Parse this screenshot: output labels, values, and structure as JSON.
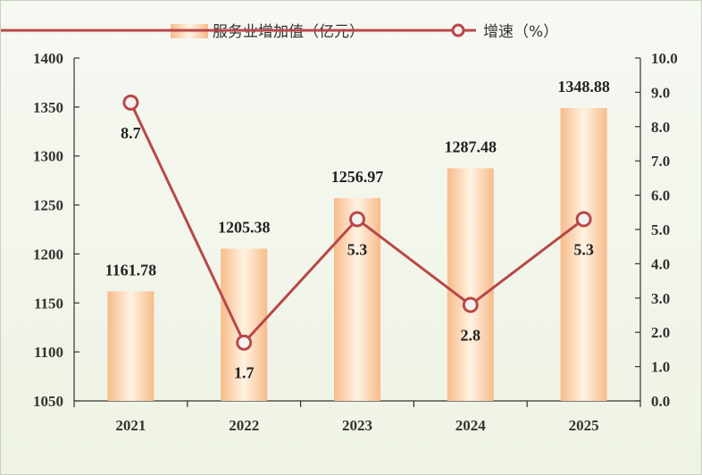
{
  "chart_data": {
    "type": "bar",
    "categories": [
      "2021",
      "2022",
      "2023",
      "2024",
      "2025"
    ],
    "series": [
      {
        "name": "服务业增加值（亿元）",
        "kind": "bar",
        "axis": "left",
        "values": [
          1161.78,
          1205.38,
          1256.97,
          1287.48,
          1348.88
        ],
        "labels": [
          "1161.78",
          "1205.38",
          "1256.97",
          "1287.48",
          "1348.88"
        ]
      },
      {
        "name": "增速（%）",
        "kind": "line",
        "axis": "right",
        "values": [
          8.7,
          1.7,
          5.3,
          2.8,
          5.3
        ],
        "labels": [
          "8.7",
          "1.7",
          "5.3",
          "2.8",
          "5.3"
        ]
      }
    ],
    "left_axis": {
      "ylim": [
        1050,
        1400
      ],
      "ticks": [
        "1050",
        "1100",
        "1150",
        "1200",
        "1250",
        "1300",
        "1350",
        "1400"
      ]
    },
    "right_axis": {
      "ylim": [
        0,
        10
      ],
      "ticks": [
        "0.0",
        "1.0",
        "2.0",
        "3.0",
        "4.0",
        "5.0",
        "6.0",
        "7.0",
        "8.0",
        "9.0",
        "10.0"
      ]
    },
    "legend_position": "top-center",
    "grid": false,
    "colors": {
      "bar_edge": "#f7bb8a",
      "bar_center": "#fff3e2",
      "line": "#b94848",
      "marker_fill": "#f4f1f1"
    }
  }
}
